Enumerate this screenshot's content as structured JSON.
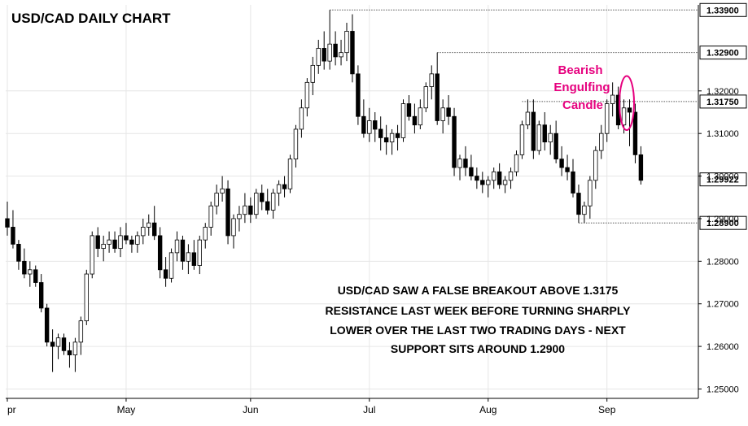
{
  "chart_data": {
    "type": "candlestick",
    "title": "USD/CAD DAILY CHART",
    "price_axis_ticks": [
      "1.25000",
      "1.26000",
      "1.27000",
      "1.28000",
      "1.29000",
      "1.30000",
      "1.31000",
      "1.32000"
    ],
    "ylim": [
      1.2478,
      1.3402
    ],
    "x_labels": [
      {
        "label": "pr",
        "bar": 0
      },
      {
        "label": "May",
        "bar": 21
      },
      {
        "label": "Jun",
        "bar": 43
      },
      {
        "label": "Jul",
        "bar": 64
      },
      {
        "label": "Aug",
        "bar": 85
      },
      {
        "label": "Sep",
        "bar": 106
      }
    ],
    "levels": [
      {
        "label": "1.33900",
        "value": 1.339,
        "from_bar": 57
      },
      {
        "label": "1.32900",
        "value": 1.329,
        "from_bar": 76
      },
      {
        "label": "1.31750",
        "value": 1.3175,
        "from_bar": 91
      },
      {
        "label": "1.28900",
        "value": 1.289,
        "from_bar": 101
      }
    ],
    "current_price": {
      "label": "1.29922",
      "value": 1.29922
    },
    "annotation_callout": [
      "Bearish",
      "Engulfing",
      "Candle"
    ],
    "commentary": [
      "USD/CAD SAW A FALSE BREAKOUT ABOVE 1.3175",
      "RESISTANCE LAST WEEK BEFORE TURNING SHARPLY",
      "LOWER OVER THE LAST TWO TRADING DAYS - NEXT",
      "SUPPORT SITS AROUND 1.2900"
    ],
    "colors": {
      "up": "#ffffff",
      "down": "#000000",
      "wick": "#000000",
      "callout": "#e6007e",
      "grid": "#e6e6e6"
    },
    "candles_ohlc": [
      [
        1.29,
        1.294,
        1.286,
        1.288
      ],
      [
        1.288,
        1.292,
        1.283,
        1.284
      ],
      [
        1.284,
        1.285,
        1.278,
        1.28
      ],
      [
        1.28,
        1.283,
        1.276,
        1.277
      ],
      [
        1.277,
        1.28,
        1.274,
        1.278
      ],
      [
        1.278,
        1.279,
        1.274,
        1.275
      ],
      [
        1.275,
        1.277,
        1.268,
        1.269
      ],
      [
        1.269,
        1.27,
        1.26,
        1.261
      ],
      [
        1.261,
        1.264,
        1.254,
        1.26
      ],
      [
        1.26,
        1.263,
        1.257,
        1.262
      ],
      [
        1.262,
        1.263,
        1.258,
        1.259
      ],
      [
        1.259,
        1.261,
        1.255,
        1.258
      ],
      [
        1.258,
        1.262,
        1.254,
        1.261
      ],
      [
        1.261,
        1.267,
        1.258,
        1.266
      ],
      [
        1.266,
        1.278,
        1.265,
        1.277
      ],
      [
        1.277,
        1.287,
        1.276,
        1.286
      ],
      [
        1.286,
        1.288,
        1.281,
        1.283
      ],
      [
        1.283,
        1.286,
        1.28,
        1.284
      ],
      [
        1.284,
        1.287,
        1.282,
        1.285
      ],
      [
        1.285,
        1.287,
        1.282,
        1.283
      ],
      [
        1.283,
        1.288,
        1.281,
        1.286
      ],
      [
        1.286,
        1.289,
        1.284,
        1.285
      ],
      [
        1.285,
        1.286,
        1.282,
        1.284
      ],
      [
        1.284,
        1.287,
        1.282,
        1.286
      ],
      [
        1.286,
        1.29,
        1.284,
        1.288
      ],
      [
        1.288,
        1.291,
        1.286,
        1.289
      ],
      [
        1.289,
        1.293,
        1.285,
        1.286
      ],
      [
        1.286,
        1.288,
        1.276,
        1.278
      ],
      [
        1.278,
        1.281,
        1.274,
        1.276
      ],
      [
        1.276,
        1.283,
        1.275,
        1.282
      ],
      [
        1.282,
        1.287,
        1.28,
        1.285
      ],
      [
        1.285,
        1.286,
        1.278,
        1.28
      ],
      [
        1.28,
        1.284,
        1.277,
        1.282
      ],
      [
        1.282,
        1.285,
        1.278,
        1.279
      ],
      [
        1.279,
        1.286,
        1.277,
        1.285
      ],
      [
        1.285,
        1.289,
        1.283,
        1.288
      ],
      [
        1.288,
        1.294,
        1.286,
        1.293
      ],
      [
        1.293,
        1.298,
        1.291,
        1.296
      ],
      [
        1.296,
        1.3,
        1.294,
        1.297
      ],
      [
        1.297,
        1.299,
        1.284,
        1.286
      ],
      [
        1.286,
        1.291,
        1.283,
        1.29
      ],
      [
        1.29,
        1.293,
        1.287,
        1.291
      ],
      [
        1.291,
        1.296,
        1.289,
        1.293
      ],
      [
        1.293,
        1.295,
        1.289,
        1.291
      ],
      [
        1.291,
        1.297,
        1.29,
        1.296
      ],
      [
        1.296,
        1.298,
        1.292,
        1.294
      ],
      [
        1.294,
        1.297,
        1.291,
        1.292
      ],
      [
        1.292,
        1.297,
        1.29,
        1.296
      ],
      [
        1.296,
        1.299,
        1.293,
        1.298
      ],
      [
        1.298,
        1.3,
        1.295,
        1.297
      ],
      [
        1.297,
        1.305,
        1.296,
        1.304
      ],
      [
        1.304,
        1.312,
        1.302,
        1.311
      ],
      [
        1.311,
        1.318,
        1.309,
        1.316
      ],
      [
        1.316,
        1.323,
        1.314,
        1.322
      ],
      [
        1.322,
        1.328,
        1.319,
        1.326
      ],
      [
        1.326,
        1.332,
        1.324,
        1.33
      ],
      [
        1.33,
        1.334,
        1.325,
        1.327
      ],
      [
        1.327,
        1.339,
        1.325,
        1.331
      ],
      [
        1.331,
        1.334,
        1.326,
        1.328
      ],
      [
        1.328,
        1.332,
        1.326,
        1.329
      ],
      [
        1.329,
        1.336,
        1.327,
        1.334
      ],
      [
        1.334,
        1.338,
        1.322,
        1.324
      ],
      [
        1.324,
        1.326,
        1.312,
        1.314
      ],
      [
        1.314,
        1.318,
        1.309,
        1.31
      ],
      [
        1.31,
        1.316,
        1.308,
        1.313
      ],
      [
        1.313,
        1.315,
        1.308,
        1.311
      ],
      [
        1.311,
        1.314,
        1.306,
        1.309
      ],
      [
        1.309,
        1.312,
        1.305,
        1.308
      ],
      [
        1.308,
        1.311,
        1.305,
        1.31
      ],
      [
        1.31,
        1.312,
        1.306,
        1.309
      ],
      [
        1.309,
        1.318,
        1.308,
        1.317
      ],
      [
        1.317,
        1.319,
        1.313,
        1.314
      ],
      [
        1.314,
        1.317,
        1.31,
        1.312
      ],
      [
        1.312,
        1.318,
        1.311,
        1.316
      ],
      [
        1.316,
        1.322,
        1.315,
        1.321
      ],
      [
        1.321,
        1.326,
        1.318,
        1.324
      ],
      [
        1.324,
        1.329,
        1.312,
        1.313
      ],
      [
        1.313,
        1.318,
        1.31,
        1.316
      ],
      [
        1.316,
        1.319,
        1.312,
        1.314
      ],
      [
        1.314,
        1.316,
        1.3,
        1.302
      ],
      [
        1.302,
        1.305,
        1.299,
        1.304
      ],
      [
        1.304,
        1.307,
        1.3,
        1.302
      ],
      [
        1.302,
        1.305,
        1.299,
        1.3
      ],
      [
        1.3,
        1.302,
        1.297,
        1.299
      ],
      [
        1.299,
        1.301,
        1.296,
        1.298
      ],
      [
        1.298,
        1.3,
        1.295,
        1.299
      ],
      [
        1.299,
        1.302,
        1.297,
        1.301
      ],
      [
        1.301,
        1.303,
        1.297,
        1.298
      ],
      [
        1.298,
        1.3,
        1.296,
        1.299
      ],
      [
        1.299,
        1.302,
        1.297,
        1.301
      ],
      [
        1.301,
        1.306,
        1.3,
        1.305
      ],
      [
        1.305,
        1.313,
        1.304,
        1.312
      ],
      [
        1.312,
        1.318,
        1.311,
        1.315
      ],
      [
        1.315,
        1.318,
        1.304,
        1.306
      ],
      [
        1.306,
        1.313,
        1.305,
        1.312
      ],
      [
        1.312,
        1.315,
        1.306,
        1.308
      ],
      [
        1.308,
        1.312,
        1.305,
        1.31
      ],
      [
        1.31,
        1.313,
        1.303,
        1.304
      ],
      [
        1.304,
        1.307,
        1.3,
        1.302
      ],
      [
        1.302,
        1.305,
        1.299,
        1.301
      ],
      [
        1.301,
        1.304,
        1.295,
        1.296
      ],
      [
        1.296,
        1.298,
        1.289,
        1.291
      ],
      [
        1.291,
        1.294,
        1.289,
        1.293
      ],
      [
        1.293,
        1.3,
        1.29,
        1.299
      ],
      [
        1.299,
        1.307,
        1.297,
        1.306
      ],
      [
        1.306,
        1.312,
        1.304,
        1.31
      ],
      [
        1.31,
        1.318,
        1.308,
        1.317
      ],
      [
        1.317,
        1.322,
        1.314,
        1.319
      ],
      [
        1.319,
        1.321,
        1.311,
        1.312
      ],
      [
        1.312,
        1.318,
        1.31,
        1.316
      ],
      [
        1.316,
        1.318,
        1.307,
        1.315
      ],
      [
        1.315,
        1.317,
        1.303,
        1.305
      ],
      [
        1.305,
        1.307,
        1.298,
        1.299
      ]
    ]
  }
}
